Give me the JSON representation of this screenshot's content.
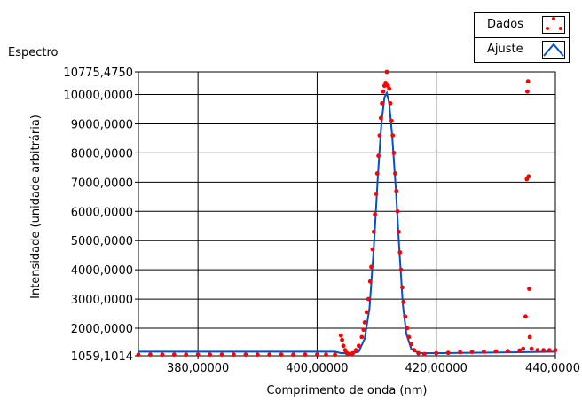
{
  "chart_data": {
    "type": "scatter",
    "title": "Espectro",
    "xlabel": "Comprimento de onda (nm)",
    "ylabel": "Intensidade (unidade arbitrária)",
    "xlim": [
      370.0,
      440.0
    ],
    "ylim": [
      1059.1014,
      10775.475
    ],
    "x_ticks": [
      {
        "value": 380,
        "label": "380,00000"
      },
      {
        "value": 400,
        "label": "400,00000"
      },
      {
        "value": 420,
        "label": "420,00000"
      },
      {
        "value": 440,
        "label": "440,0000"
      }
    ],
    "y_ticks": [
      {
        "value": 1059.1014,
        "label": "1059,1014"
      },
      {
        "value": 2000,
        "label": "2000,0000"
      },
      {
        "value": 3000,
        "label": "3000,0000"
      },
      {
        "value": 4000,
        "label": "4000,0000"
      },
      {
        "value": 5000,
        "label": "5000,0000"
      },
      {
        "value": 6000,
        "label": "6000,0000"
      },
      {
        "value": 7000,
        "label": "7000,0000"
      },
      {
        "value": 8000,
        "label": "8000,0000"
      },
      {
        "value": 9000,
        "label": "9000,0000"
      },
      {
        "value": 10000,
        "label": "10000,0000"
      },
      {
        "value": 10775.475,
        "label": "10775,4750"
      }
    ],
    "grid": true,
    "legend_position": "top-right",
    "series": [
      {
        "name": "Dados",
        "style": "points",
        "color": "#ff0000",
        "points": [
          [
            370.0,
            1100
          ],
          [
            372.0,
            1100
          ],
          [
            374.0,
            1100
          ],
          [
            376.0,
            1100
          ],
          [
            378.0,
            1100
          ],
          [
            380.0,
            1100
          ],
          [
            382.0,
            1100
          ],
          [
            384.0,
            1100
          ],
          [
            386.0,
            1100
          ],
          [
            388.0,
            1100
          ],
          [
            390.0,
            1100
          ],
          [
            392.0,
            1100
          ],
          [
            394.0,
            1100
          ],
          [
            396.0,
            1100
          ],
          [
            398.0,
            1100
          ],
          [
            400.0,
            1100
          ],
          [
            401.5,
            1100
          ],
          [
            403.0,
            1100
          ],
          [
            404.0,
            1750
          ],
          [
            404.2,
            1600
          ],
          [
            404.4,
            1400
          ],
          [
            404.7,
            1250
          ],
          [
            405.0,
            1150
          ],
          [
            405.5,
            1120
          ],
          [
            406.0,
            1150
          ],
          [
            406.5,
            1250
          ],
          [
            407.0,
            1400
          ],
          [
            407.5,
            1700
          ],
          [
            407.8,
            1950
          ],
          [
            408.0,
            2200
          ],
          [
            408.3,
            2550
          ],
          [
            408.6,
            3000
          ],
          [
            408.9,
            3600
          ],
          [
            409.1,
            4100
          ],
          [
            409.3,
            4700
          ],
          [
            409.5,
            5300
          ],
          [
            409.7,
            5900
          ],
          [
            409.9,
            6600
          ],
          [
            410.1,
            7300
          ],
          [
            410.3,
            7900
          ],
          [
            410.5,
            8600
          ],
          [
            410.7,
            9200
          ],
          [
            410.9,
            9700
          ],
          [
            411.1,
            10100
          ],
          [
            411.3,
            10300
          ],
          [
            411.5,
            10400
          ],
          [
            411.7,
            10775
          ],
          [
            411.9,
            10300
          ],
          [
            412.1,
            10200
          ],
          [
            412.3,
            9700
          ],
          [
            412.5,
            9100
          ],
          [
            412.7,
            8600
          ],
          [
            412.9,
            8000
          ],
          [
            413.1,
            7300
          ],
          [
            413.3,
            6700
          ],
          [
            413.5,
            6000
          ],
          [
            413.7,
            5300
          ],
          [
            413.9,
            4600
          ],
          [
            414.1,
            4000
          ],
          [
            414.3,
            3400
          ],
          [
            414.5,
            2900
          ],
          [
            414.8,
            2400
          ],
          [
            415.1,
            2000
          ],
          [
            415.4,
            1700
          ],
          [
            415.8,
            1450
          ],
          [
            416.3,
            1250
          ],
          [
            417.0,
            1150
          ],
          [
            418.0,
            1120
          ],
          [
            420.0,
            1150
          ],
          [
            422.0,
            1160
          ],
          [
            424.0,
            1180
          ],
          [
            426.0,
            1190
          ],
          [
            428.0,
            1200
          ],
          [
            430.0,
            1210
          ],
          [
            432.0,
            1220
          ],
          [
            434.0,
            1240
          ],
          [
            434.6,
            1300
          ],
          [
            435.0,
            2400
          ],
          [
            435.2,
            7100
          ],
          [
            435.3,
            10100
          ],
          [
            435.4,
            10450
          ],
          [
            435.5,
            7200
          ],
          [
            435.6,
            3350
          ],
          [
            435.7,
            1700
          ],
          [
            436.0,
            1300
          ],
          [
            437.0,
            1250
          ],
          [
            438.0,
            1250
          ],
          [
            439.0,
            1250
          ],
          [
            440.0,
            1250
          ]
        ]
      },
      {
        "name": "Ajuste",
        "style": "line",
        "color": "#0050d0",
        "points": [
          [
            370.0,
            1200
          ],
          [
            403.0,
            1200
          ],
          [
            404.0,
            1150
          ],
          [
            406.0,
            1150
          ],
          [
            407.0,
            1200
          ],
          [
            408.0,
            1650
          ],
          [
            408.8,
            2700
          ],
          [
            409.5,
            4700
          ],
          [
            410.2,
            7200
          ],
          [
            410.8,
            9000
          ],
          [
            411.3,
            9900
          ],
          [
            411.7,
            10050
          ],
          [
            412.1,
            9700
          ],
          [
            412.6,
            8600
          ],
          [
            413.2,
            6800
          ],
          [
            413.8,
            4700
          ],
          [
            414.4,
            2800
          ],
          [
            415.0,
            1800
          ],
          [
            415.8,
            1300
          ],
          [
            417.0,
            1150
          ],
          [
            420.0,
            1150
          ],
          [
            434.0,
            1180
          ],
          [
            440.0,
            1200
          ]
        ]
      }
    ]
  }
}
